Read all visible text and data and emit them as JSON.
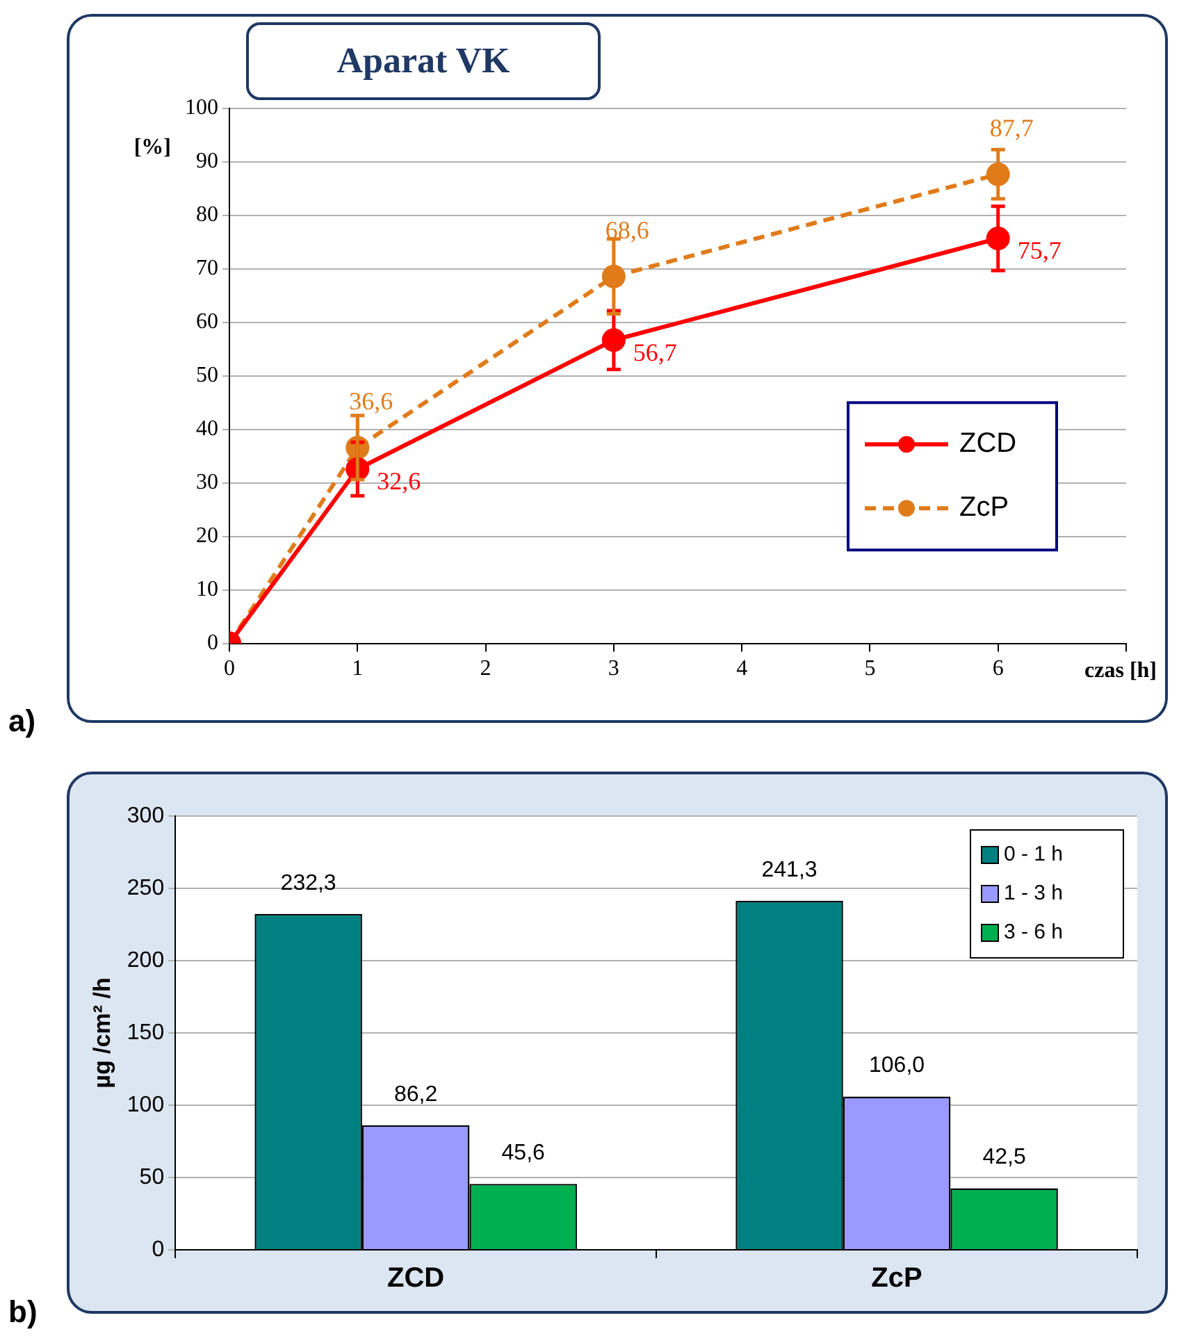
{
  "chart_data": [
    {
      "type": "line",
      "title": "Aparat VK",
      "ylabel": "[%]",
      "xlabel": "czas [h]",
      "x": [
        0,
        1,
        3,
        6
      ],
      "xlim": [
        0,
        7
      ],
      "xticks": [
        0,
        1,
        2,
        3,
        4,
        5,
        6,
        {
          "value": 7,
          "label": null
        }
      ],
      "ylim": [
        0,
        100
      ],
      "yticks": [
        0,
        10,
        20,
        30,
        40,
        50,
        60,
        70,
        80,
        90,
        100
      ],
      "grid": "y",
      "legend": "right",
      "marker": "circle",
      "series": [
        {
          "name": "ZCD",
          "color": "#ff0000",
          "line_style": "solid",
          "values": [
            0,
            32.6,
            56.7,
            75.7
          ],
          "errors": [
            null,
            5,
            5.5,
            6
          ],
          "value_labels": [
            null,
            "32,6",
            "56,7",
            "75,7"
          ]
        },
        {
          "name": "ZcP",
          "color": "#e07b1a",
          "line_style": "dashed",
          "values": [
            0,
            36.6,
            68.6,
            87.7
          ],
          "errors": [
            null,
            6,
            7,
            4.6
          ],
          "value_labels": [
            null,
            "36,6",
            "68,6",
            "87,7"
          ]
        }
      ],
      "annotations": [
        "a)"
      ]
    },
    {
      "type": "bar",
      "ylabel": "µg /cm² /h",
      "categories": [
        "ZCD",
        "ZcP"
      ],
      "ylim": [
        0,
        300
      ],
      "yticks": [
        0,
        50,
        100,
        150,
        200,
        250,
        300
      ],
      "grid": "y",
      "legend": "top right",
      "series": [
        {
          "name": "0 - 1 h",
          "color": "#008080",
          "values": [
            232.3,
            241.3
          ],
          "value_labels": [
            "232,3",
            "241,3"
          ]
        },
        {
          "name": "1 - 3 h",
          "color": "#9999ff",
          "values": [
            86.2,
            106.0
          ],
          "value_labels": [
            "86,2",
            "106,0"
          ]
        },
        {
          "name": "3 - 6 h",
          "color": "#00b050",
          "values": [
            45.6,
            42.5
          ],
          "value_labels": [
            "45,6",
            "42,5"
          ]
        }
      ],
      "annotations": [
        "b)"
      ]
    }
  ]
}
